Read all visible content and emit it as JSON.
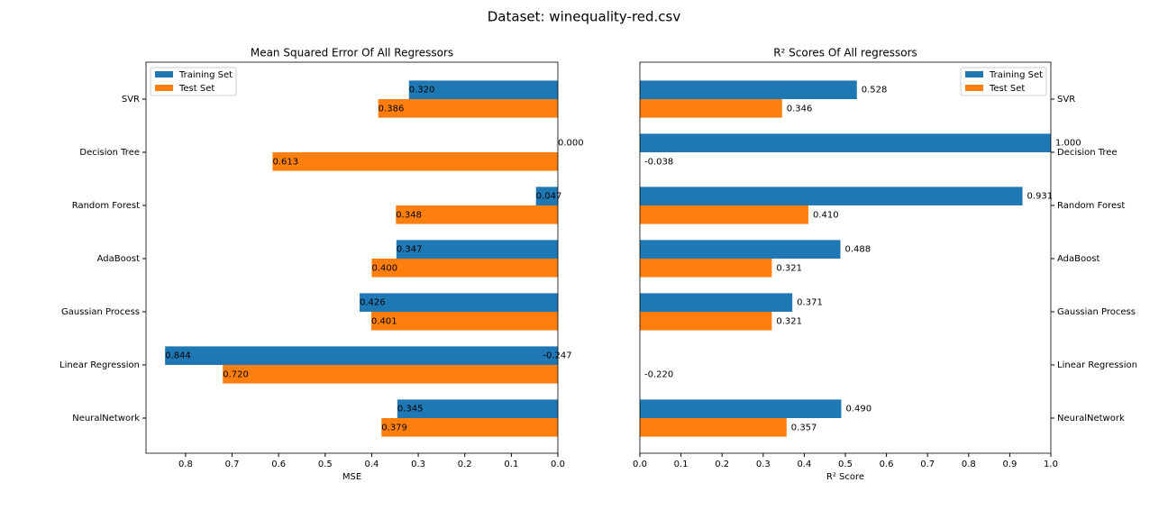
{
  "title": "Dataset: winequality-red.csv",
  "chart_data": [
    {
      "type": "bar",
      "orientation": "horizontal",
      "title": "Mean Squared Error Of All Regressors",
      "xlabel": "MSE",
      "categories": [
        "SVR",
        "Decision Tree",
        "Random Forest",
        "AdaBoost",
        "Gaussian Process",
        "Linear Regression",
        "NeuralNetwork"
      ],
      "series": [
        {
          "name": "Training Set",
          "color": "#1f77b4",
          "values": [
            0.32,
            0.0,
            0.047,
            0.347,
            0.426,
            0.844,
            0.345
          ],
          "value_labels": [
            "0.320",
            "0.000",
            "0.047",
            "0.347",
            "0.426",
            "0.844",
            "0.345"
          ]
        },
        {
          "name": "Test Set",
          "color": "#ff7f0e",
          "values": [
            0.386,
            0.613,
            0.348,
            0.4,
            0.401,
            0.72,
            0.379
          ],
          "value_labels": [
            "0.386",
            "0.613",
            "0.348",
            "0.400",
            "0.401",
            "0.720",
            "0.379"
          ]
        }
      ],
      "xlim": [
        0.885,
        0
      ],
      "xticks": [
        0.8,
        0.7,
        0.6,
        0.5,
        0.4,
        0.3,
        0.2,
        0.1,
        {
          "value": 0,
          "label": "0.0"
        }
      ],
      "legend": "upper left",
      "ytick_side": "left"
    },
    {
      "type": "bar",
      "orientation": "horizontal",
      "title": "R² Scores Of All regressors",
      "xlabel": "R² Score",
      "categories": [
        "SVR",
        "Decision Tree",
        "Random Forest",
        "AdaBoost",
        "Gaussian Process",
        "Linear Regression",
        "NeuralNetwork"
      ],
      "series": [
        {
          "name": "Training Set",
          "color": "#1f77b4",
          "values": [
            0.528,
            1.0,
            0.931,
            0.488,
            0.371,
            -0.247,
            0.49
          ],
          "value_labels": [
            "0.528",
            "1.000",
            "0.931",
            "0.488",
            "0.371",
            "-0.247",
            "0.490"
          ]
        },
        {
          "name": "Test Set",
          "color": "#ff7f0e",
          "values": [
            0.346,
            -0.038,
            0.41,
            0.321,
            0.321,
            -0.22,
            0.357
          ],
          "value_labels": [
            "0.346",
            "-0.038",
            "0.410",
            "0.321",
            "0.321",
            "-0.220",
            "0.357"
          ]
        }
      ],
      "xlim": [
        0,
        1
      ],
      "xticks": [
        {
          "value": 0,
          "label": "0.0"
        },
        0.1,
        0.2,
        0.3,
        0.4,
        0.5,
        0.6,
        0.7,
        0.8,
        0.9,
        {
          "value": 1,
          "label": "1.0"
        }
      ],
      "legend": "upper right",
      "ytick_side": "right"
    }
  ]
}
